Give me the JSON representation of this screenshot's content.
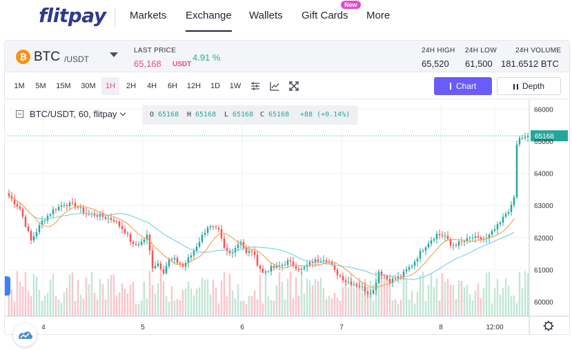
{
  "brand": {
    "logo": "flitpay"
  },
  "nav": {
    "items": [
      "Markets",
      "Exchange",
      "Wallets",
      "Gift Cards",
      "More"
    ],
    "active": "Exchange",
    "new_badge": "New"
  },
  "ticker": {
    "coin_symbol": "₿",
    "base": "BTC",
    "quote": "/USDT",
    "last_price_label": "LAST PRICE",
    "last_price": "65,168",
    "last_price_unit": "USDT",
    "change": "4.91 %",
    "high_label": "24H HIGH",
    "high": "65,520",
    "low_label": "24H LOW",
    "low": "61,500",
    "volume_label": "24H VOLUME",
    "volume": "181.6512 BTC"
  },
  "toolbar": {
    "timeframes": [
      "1M",
      "5M",
      "15M",
      "30M",
      "1H",
      "2H",
      "4H",
      "6H",
      "12H",
      "1D",
      "1W"
    ],
    "active_timeframe": "1H",
    "chart_button": "Chart",
    "depth_button": "Depth"
  },
  "legend": {
    "title": "BTC/USDT, 60, flitpay",
    "o_label": "O",
    "o": "65168",
    "h_label": "H",
    "h": "65168",
    "l_label": "L",
    "l": "65168",
    "c_label": "C",
    "c": "65168",
    "change": "+88 (+0.14%)"
  },
  "colors": {
    "up": "#26a69a",
    "down": "#ef5350",
    "vol_up": "#c3e6d6",
    "vol_down": "#f8c6cc",
    "ma_fast": "#f2a65a",
    "ma_slow": "#7dd3ea",
    "accent": "#6a5cf6",
    "price_line": "#26a69a"
  },
  "chart_data": {
    "type": "candlestick",
    "x_ticks": [
      "4",
      "5",
      "6",
      "7",
      "8",
      "12:00"
    ],
    "y_ticks": [
      60000,
      61000,
      62000,
      63000,
      64000,
      65000,
      66000
    ],
    "ylim": [
      59550,
      66200
    ],
    "current_price": 65168,
    "current_price_label": "65168",
    "anchors": [
      [
        0,
        63300
      ],
      [
        4,
        62900
      ],
      [
        8,
        61900
      ],
      [
        12,
        62500
      ],
      [
        16,
        62850
      ],
      [
        20,
        63050
      ],
      [
        24,
        63000
      ],
      [
        28,
        62750
      ],
      [
        32,
        62700
      ],
      [
        38,
        62550
      ],
      [
        42,
        62200
      ],
      [
        45,
        61750
      ],
      [
        48,
        61850
      ],
      [
        50,
        62050
      ],
      [
        52,
        61100
      ],
      [
        54,
        61200
      ],
      [
        56,
        60950
      ],
      [
        58,
        61300
      ],
      [
        60,
        61300
      ],
      [
        63,
        61100
      ],
      [
        66,
        61450
      ],
      [
        70,
        62050
      ],
      [
        72,
        62350
      ],
      [
        76,
        62200
      ],
      [
        78,
        61650
      ],
      [
        80,
        61500
      ],
      [
        84,
        61900
      ],
      [
        86,
        61500
      ],
      [
        88,
        61600
      ],
      [
        90,
        61200
      ],
      [
        92,
        60900
      ],
      [
        95,
        61050
      ],
      [
        98,
        61100
      ],
      [
        101,
        61250
      ],
      [
        106,
        61000
      ],
      [
        110,
        61250
      ],
      [
        114,
        61350
      ],
      [
        116,
        61250
      ],
      [
        118,
        60950
      ],
      [
        122,
        60650
      ],
      [
        124,
        60600
      ],
      [
        127,
        60500
      ],
      [
        130,
        60300
      ],
      [
        132,
        60350
      ],
      [
        134,
        60950
      ],
      [
        138,
        60650
      ],
      [
        142,
        60800
      ],
      [
        146,
        61150
      ],
      [
        150,
        61650
      ],
      [
        152,
        61850
      ],
      [
        155,
        62100
      ],
      [
        158,
        62050
      ],
      [
        160,
        61750
      ],
      [
        164,
        61850
      ],
      [
        168,
        62000
      ],
      [
        170,
        61950
      ],
      [
        173,
        61950
      ],
      [
        176,
        62250
      ],
      [
        178,
        62450
      ],
      [
        180,
        62750
      ],
      [
        182,
        62950
      ],
      [
        183,
        63250
      ],
      [
        184,
        64900
      ],
      [
        185,
        65100
      ],
      [
        186,
        65100
      ],
      [
        188,
        65168
      ]
    ]
  }
}
